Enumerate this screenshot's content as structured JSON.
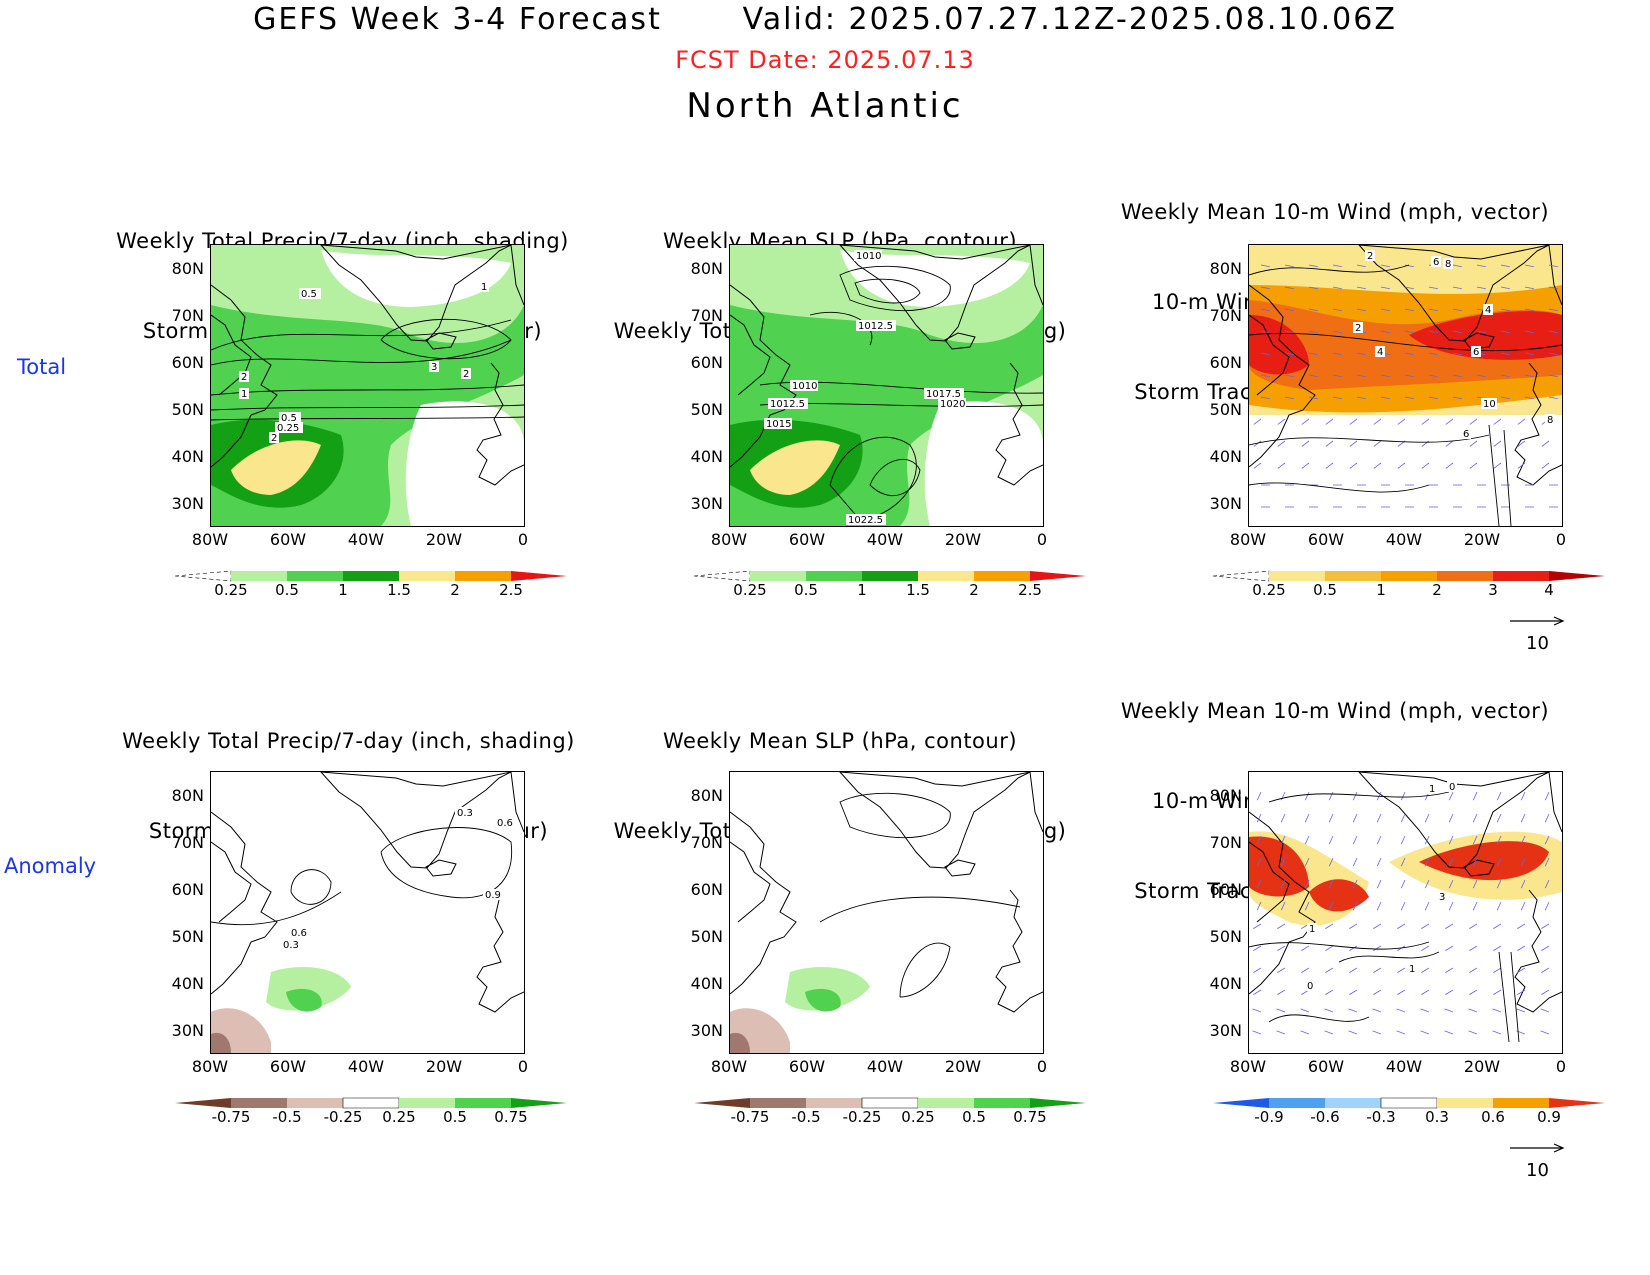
{
  "header": {
    "title": "GEFS Week 3-4 Forecast       Valid: 2025.07.27.12Z-2025.08.10.06Z",
    "fcst_date": "FCST Date: 2025.07.13",
    "region": "North Atlantic"
  },
  "rows": [
    {
      "label": "Total"
    },
    {
      "label": "Anomaly"
    }
  ],
  "panel_titles": {
    "precip_track": [
      "Weekly Total Precip/7-day (inch, shading)",
      "Storm Track Density/7-day (contour)"
    ],
    "slp_precip": [
      "Weekly Mean SLP (hPa, contour)",
      "Weekly Total Precip/7-day (inch, shading)"
    ],
    "wind_track": [
      "Weekly Mean 10-m Wind (mph, vector)",
      "10-m Wind Speed (mph, contour)",
      "Storm Track Density/7-day (shading)"
    ]
  },
  "axes": {
    "lat_labels": [
      "80N",
      "70N",
      "60N",
      "50N",
      "40N",
      "30N"
    ],
    "lon_labels": [
      "80W",
      "60W",
      "40W",
      "20W",
      "0"
    ]
  },
  "colorbars": {
    "precip_total": {
      "labels": [
        "0.25",
        "0.5",
        "1",
        "1.5",
        "2",
        "2.5"
      ],
      "colors": [
        "#ffffff",
        "#b4f0a0",
        "#50d250",
        "#14a014",
        "#fae68c",
        "#f5a000",
        "#e61414"
      ]
    },
    "track_total": {
      "labels": [
        "0.25",
        "0.5",
        "1",
        "2",
        "3",
        "4"
      ],
      "colors": [
        "#ffffff",
        "#fae68c",
        "#f5be3c",
        "#f5a000",
        "#f06e14",
        "#e61e14",
        "#b40000"
      ]
    },
    "precip_anom": {
      "labels": [
        "-0.75",
        "-0.5",
        "-0.25",
        "0.25",
        "0.5",
        "0.75"
      ],
      "colors": [
        "#6e3c28",
        "#a0786e",
        "#dcbeb4",
        "#ffffff",
        "#b4f0a0",
        "#50d250",
        "#14a014"
      ]
    },
    "track_anom": {
      "labels": [
        "-0.9",
        "-0.6",
        "-0.3",
        "0.3",
        "0.6",
        "0.9"
      ],
      "colors": [
        "#1e5ae6",
        "#50a0f0",
        "#a0d2fa",
        "#ffffff",
        "#fae68c",
        "#f5a000",
        "#e63214"
      ]
    }
  },
  "vector_reference": {
    "value": "10"
  },
  "contour_labels": {
    "p1": [
      "0.5",
      "1",
      "2",
      "3",
      "2",
      "1",
      "0.5",
      "0.25",
      "2"
    ],
    "p2": [
      "1010",
      "1012.5",
      "1010",
      "1012.5",
      "1015",
      "1017.5",
      "1020",
      "1022.5"
    ],
    "p3": [
      "2",
      "6",
      "8",
      "4",
      "2",
      "4",
      "6",
      "10",
      "6",
      "8"
    ],
    "p4": [
      "0.3",
      "0.6",
      "0.9",
      "0.6",
      "0.3"
    ],
    "p6": [
      "1",
      "0",
      "3",
      "1",
      "1",
      "0"
    ]
  }
}
